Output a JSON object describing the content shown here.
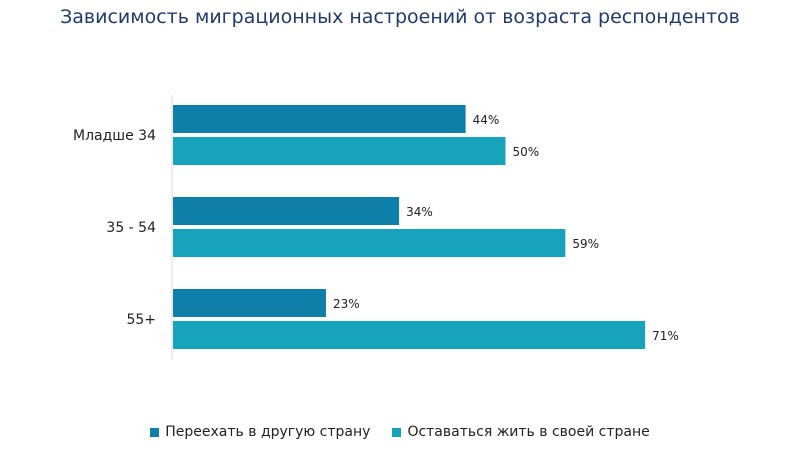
{
  "chart_data": {
    "type": "bar",
    "orientation": "horizontal",
    "title": "Зависимость миграционных настроений от возраста респондентов",
    "categories": [
      "Младше 34",
      "35 - 54",
      "55+"
    ],
    "series": [
      {
        "name": "Переехать в другую страну",
        "values": [
          44,
          34,
          23
        ],
        "labels": [
          "44%",
          "34%",
          "23%"
        ],
        "color": "#0e7fa8"
      },
      {
        "name": "Оставаться жить в своей стране",
        "values": [
          50,
          59,
          71
        ],
        "labels": [
          "50%",
          "59%",
          "71%"
        ],
        "color": "#17a3bb"
      }
    ],
    "xlabel": "",
    "ylabel": "",
    "xlim": [
      0,
      100
    ],
    "grid": false,
    "legend": "bottom"
  }
}
